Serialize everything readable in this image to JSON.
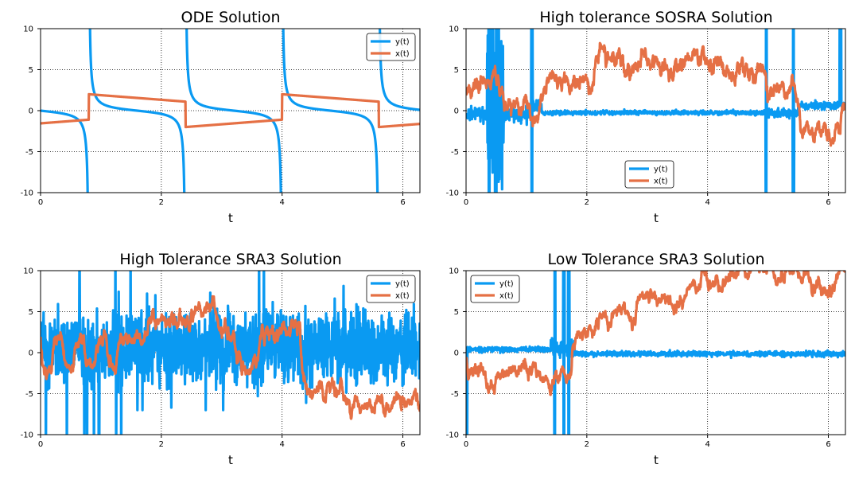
{
  "colors": {
    "y": "#0a9af2",
    "x": "#e57045"
  },
  "chart_data": [
    {
      "type": "line",
      "title": "ODE Solution",
      "xlabel": "t",
      "ylabel": "",
      "xlim": [
        0,
        6.283
      ],
      "ylim": [
        -10,
        10
      ],
      "xticks": [
        "0",
        "2",
        "4",
        "6"
      ],
      "yticks": [
        "10",
        "5",
        "0",
        "-5",
        "-10"
      ],
      "grid": true,
      "legend": "top-right",
      "kind": "ode",
      "series": [
        {
          "name": "y(t)",
          "color": "#0a9af2"
        },
        {
          "name": "x(t)",
          "color": "#e57045"
        }
      ]
    },
    {
      "type": "line",
      "title": "High tolerance SOSRA Solution",
      "xlabel": "t",
      "ylabel": "",
      "xlim": [
        0,
        6.283
      ],
      "ylim": [
        -10,
        10
      ],
      "xticks": [
        "0",
        "2",
        "4",
        "6"
      ],
      "yticks": [
        "10",
        "5",
        "0",
        "-5",
        "-10"
      ],
      "grid": true,
      "legend": "lower-center",
      "kind": "sosra",
      "series": [
        {
          "name": "y(t)",
          "color": "#0a9af2"
        },
        {
          "name": "x(t)",
          "color": "#e57045"
        }
      ]
    },
    {
      "type": "line",
      "title": "High Tolerance SRA3 Solution",
      "xlabel": "t",
      "ylabel": "",
      "xlim": [
        0,
        6.283
      ],
      "ylim": [
        -10,
        10
      ],
      "xticks": [
        "0",
        "2",
        "4",
        "6"
      ],
      "yticks": [
        "10",
        "5",
        "0",
        "-5",
        "-10"
      ],
      "grid": true,
      "legend": "top-right",
      "kind": "sra3high",
      "series": [
        {
          "name": "y(t)",
          "color": "#0a9af2"
        },
        {
          "name": "x(t)",
          "color": "#e57045"
        }
      ]
    },
    {
      "type": "line",
      "title": "Low Tolerance SRA3 Solution",
      "xlabel": "t",
      "ylabel": "",
      "xlim": [
        0,
        6.283
      ],
      "ylim": [
        -10,
        10
      ],
      "xticks": [
        "0",
        "2",
        "4",
        "6"
      ],
      "yticks": [
        "10",
        "5",
        "0",
        "-5",
        "-10"
      ],
      "grid": true,
      "legend": "top-left",
      "kind": "sra3low",
      "series": [
        {
          "name": "y(t)",
          "color": "#0a9af2"
        },
        {
          "name": "x(t)",
          "color": "#e57045"
        }
      ]
    }
  ]
}
